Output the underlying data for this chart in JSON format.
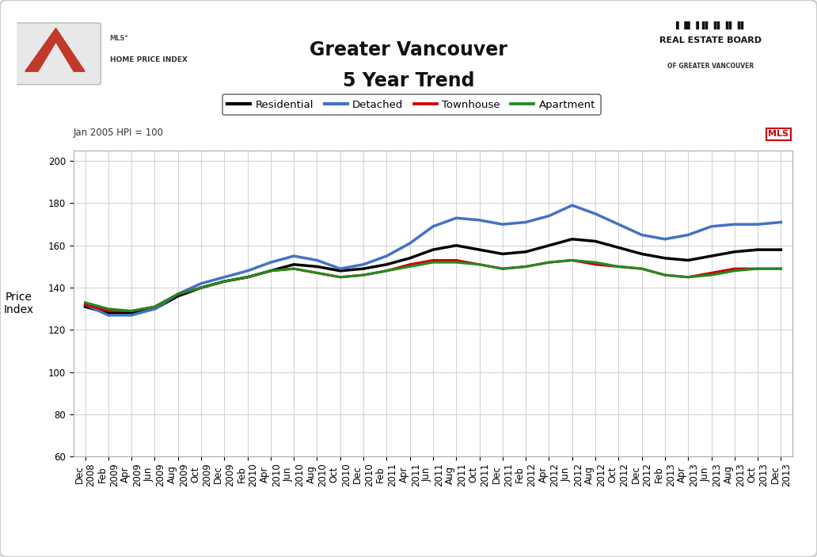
{
  "title_line1": "Greater Vancouver",
  "title_line2": "5 Year Trend",
  "ylabel": "Price\nIndex",
  "note": "Jan 2005 HPI = 100",
  "ylim": [
    60,
    205
  ],
  "yticks": [
    60,
    80,
    100,
    120,
    140,
    160,
    180,
    200
  ],
  "background_color": "#ffffff",
  "plot_bg_color": "#ffffff",
  "outer_bg_color": "#f5f5f5",
  "x_labels": [
    "Dec\n2008",
    "Feb\n2009",
    "Apr\n2009",
    "Jun\n2009",
    "Aug\n2009",
    "Oct\n2009",
    "Dec\n2009",
    "Feb\n2010",
    "Apr\n2010",
    "Jun\n2010",
    "Aug\n2010",
    "Oct\n2010",
    "Dec\n2010",
    "Feb\n2011",
    "Apr\n2011",
    "Jun\n2011",
    "Aug\n2011",
    "Oct\n2011",
    "Dec\n2011",
    "Feb\n2012",
    "Apr\n2012",
    "Jun\n2012",
    "Aug\n2012",
    "Oct\n2012",
    "Dec\n2012",
    "Feb\n2013",
    "Apr\n2013",
    "Jun\n2013",
    "Aug\n2013",
    "Oct\n2013",
    "Dec\n2013"
  ],
  "series": {
    "Residential": {
      "color": "#000000",
      "linewidth": 2.5,
      "values": [
        131,
        128,
        128,
        130,
        136,
        140,
        143,
        145,
        148,
        151,
        150,
        148,
        149,
        151,
        154,
        158,
        160,
        158,
        156,
        157,
        160,
        163,
        162,
        159,
        156,
        154,
        153,
        155,
        157,
        158,
        158
      ]
    },
    "Detached": {
      "color": "#4472c4",
      "linewidth": 2.5,
      "values": [
        132,
        127,
        127,
        130,
        137,
        142,
        145,
        148,
        152,
        155,
        153,
        149,
        151,
        155,
        161,
        169,
        173,
        172,
        170,
        171,
        174,
        179,
        175,
        170,
        165,
        163,
        165,
        169,
        170,
        170,
        171
      ]
    },
    "Townhouse": {
      "color": "#cc0000",
      "linewidth": 2.2,
      "values": [
        132,
        129,
        129,
        131,
        137,
        140,
        143,
        145,
        148,
        149,
        147,
        145,
        146,
        148,
        151,
        153,
        153,
        151,
        149,
        150,
        152,
        153,
        151,
        150,
        149,
        146,
        145,
        147,
        149,
        149,
        149
      ]
    },
    "Apartment": {
      "color": "#228B22",
      "linewidth": 2.2,
      "values": [
        133,
        130,
        129,
        131,
        137,
        140,
        143,
        145,
        148,
        149,
        147,
        145,
        146,
        148,
        150,
        152,
        152,
        151,
        149,
        150,
        152,
        153,
        152,
        150,
        149,
        146,
        145,
        146,
        148,
        149,
        149
      ]
    }
  },
  "legend_order": [
    "Residential",
    "Detached",
    "Townhouse",
    "Apartment"
  ],
  "grid_color": "#d0d0d0",
  "title_fontsize": 17,
  "axis_label_fontsize": 10,
  "tick_fontsize": 8.5,
  "legend_fontsize": 9.5,
  "border_color": "#cccccc"
}
